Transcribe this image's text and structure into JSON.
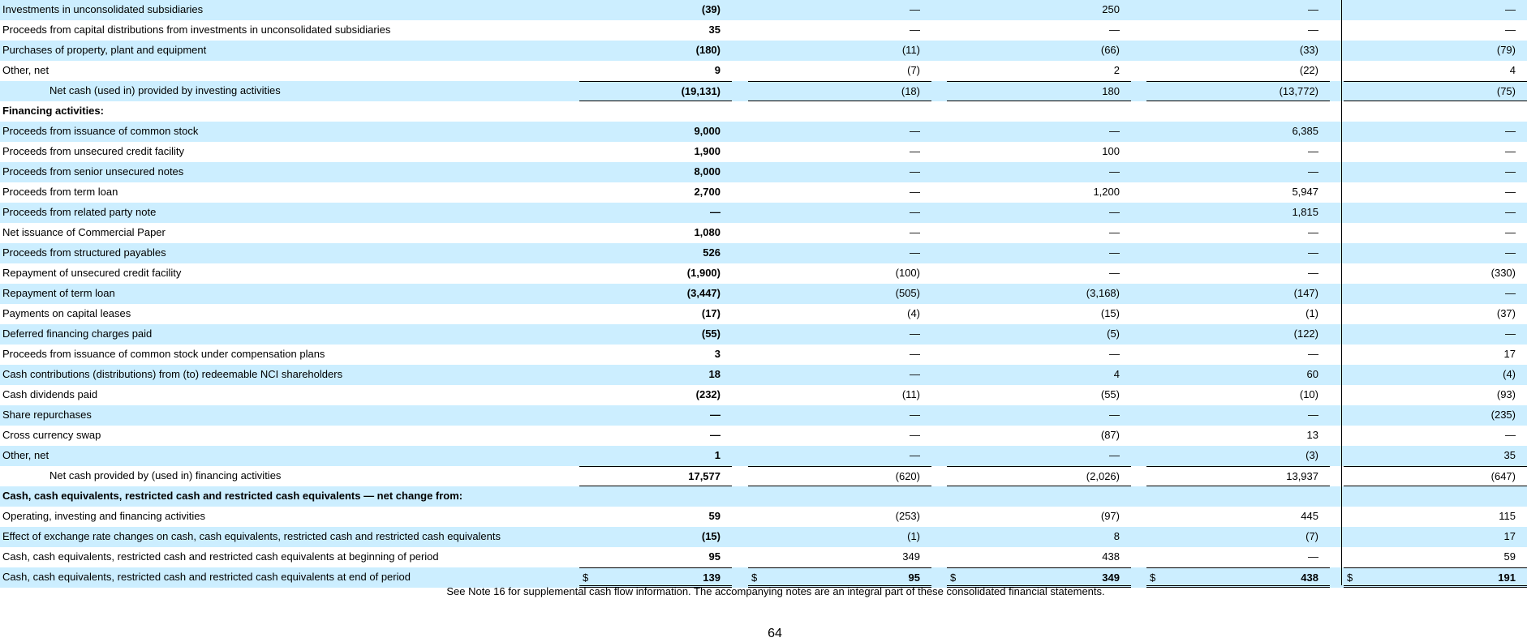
{
  "rows": [
    {
      "label": "Investments in unconsolidated subsidiaries",
      "style": "",
      "shaded": true,
      "values": [
        "(39)",
        "—",
        "250",
        "—",
        "—"
      ]
    },
    {
      "label": "Proceeds from capital distributions from investments in unconsolidated subsidiaries",
      "style": "",
      "shaded": false,
      "values": [
        "35",
        "—",
        "—",
        "—",
        "—"
      ]
    },
    {
      "label": "Purchases of property, plant and equipment",
      "style": "",
      "shaded": true,
      "values": [
        "(180)",
        "(11)",
        "(66)",
        "(33)",
        "(79)"
      ]
    },
    {
      "label": "Other, net",
      "style": "",
      "shaded": false,
      "values": [
        "9",
        "(7)",
        "2",
        "(22)",
        "4"
      ]
    },
    {
      "label": "Net cash (used in) provided by investing activities",
      "style": "total",
      "shaded": true,
      "values": [
        "(19,131)",
        "(18)",
        "180",
        "(13,772)",
        "(75)"
      ]
    },
    {
      "label": "Financing activities:",
      "style": "section",
      "shaded": false,
      "values": []
    },
    {
      "label": "Proceeds from issuance of common stock",
      "style": "",
      "shaded": true,
      "values": [
        "9,000",
        "—",
        "—",
        "6,385",
        "—"
      ]
    },
    {
      "label": "Proceeds from unsecured credit facility",
      "style": "",
      "shaded": false,
      "values": [
        "1,900",
        "—",
        "100",
        "—",
        "—"
      ]
    },
    {
      "label": "Proceeds from senior unsecured notes",
      "style": "",
      "shaded": true,
      "values": [
        "8,000",
        "—",
        "—",
        "—",
        "—"
      ]
    },
    {
      "label": "Proceeds from term loan",
      "style": "",
      "shaded": false,
      "values": [
        "2,700",
        "—",
        "1,200",
        "5,947",
        "—"
      ]
    },
    {
      "label": "Proceeds from related party note",
      "style": "",
      "shaded": true,
      "values": [
        "—",
        "—",
        "—",
        "1,815",
        "—"
      ]
    },
    {
      "label": "Net issuance of Commercial Paper",
      "style": "",
      "shaded": false,
      "values": [
        "1,080",
        "—",
        "—",
        "—",
        "—"
      ]
    },
    {
      "label": "Proceeds from structured payables",
      "style": "",
      "shaded": true,
      "values": [
        "526",
        "—",
        "—",
        "—",
        "—"
      ]
    },
    {
      "label": "Repayment of unsecured credit facility",
      "style": "",
      "shaded": false,
      "values": [
        "(1,900)",
        "(100)",
        "—",
        "—",
        "(330)"
      ]
    },
    {
      "label": "Repayment of term loan",
      "style": "",
      "shaded": true,
      "values": [
        "(3,447)",
        "(505)",
        "(3,168)",
        "(147)",
        "—"
      ]
    },
    {
      "label": "Payments on capital leases",
      "style": "",
      "shaded": false,
      "values": [
        "(17)",
        "(4)",
        "(15)",
        "(1)",
        "(37)"
      ]
    },
    {
      "label": "Deferred financing charges paid",
      "style": "",
      "shaded": true,
      "values": [
        "(55)",
        "—",
        "(5)",
        "(122)",
        "—"
      ]
    },
    {
      "label": "Proceeds from issuance of common stock under compensation plans",
      "style": "",
      "shaded": false,
      "values": [
        "3",
        "—",
        "—",
        "—",
        "17"
      ]
    },
    {
      "label": "Cash contributions (distributions) from (to) redeemable NCI shareholders",
      "style": "",
      "shaded": true,
      "values": [
        "18",
        "—",
        "4",
        "60",
        "(4)"
      ]
    },
    {
      "label": "Cash dividends paid",
      "style": "",
      "shaded": false,
      "values": [
        "(232)",
        "(11)",
        "(55)",
        "(10)",
        "(93)"
      ]
    },
    {
      "label": "Share repurchases",
      "style": "",
      "shaded": true,
      "values": [
        "—",
        "—",
        "—",
        "—",
        "(235)"
      ]
    },
    {
      "label": "Cross currency swap",
      "style": "",
      "shaded": false,
      "values": [
        "—",
        "—",
        "(87)",
        "13",
        "—"
      ]
    },
    {
      "label": "Other, net",
      "style": "",
      "shaded": true,
      "values": [
        "1",
        "—",
        "—",
        "(3)",
        "35"
      ]
    },
    {
      "label": "Net cash provided by (used in) financing activities",
      "style": "total",
      "shaded": false,
      "values": [
        "17,577",
        "(620)",
        "(2,026)",
        "13,937",
        "(647)"
      ]
    },
    {
      "label": "Cash, cash equivalents, restricted cash and restricted cash equivalents — net change from:",
      "style": "section",
      "shaded": true,
      "values": []
    },
    {
      "label": "Operating, investing and financing activities",
      "style": "",
      "shaded": false,
      "values": [
        "59",
        "(253)",
        "(97)",
        "445",
        "115"
      ]
    },
    {
      "label": "Effect of exchange rate changes on cash, cash equivalents, restricted cash and restricted cash equivalents",
      "style": "",
      "shaded": true,
      "values": [
        "(15)",
        "(1)",
        "8",
        "(7)",
        "17"
      ]
    },
    {
      "label": "Cash, cash equivalents, restricted cash and restricted cash equivalents at beginning of period",
      "style": "",
      "shaded": false,
      "values": [
        "95",
        "349",
        "438",
        "—",
        "59"
      ]
    },
    {
      "label": "Cash, cash equivalents, restricted cash and restricted cash equivalents at end of period",
      "style": "final",
      "shaded": true,
      "values": [
        "139",
        "95",
        "349",
        "438",
        "191"
      ],
      "currency": "$"
    }
  ],
  "footnote": "See Note 16 for supplemental cash flow information. The accompanying notes are an integral part of these consolidated financial statements.",
  "page_number": "64",
  "colors": {
    "row_shade": "#cceeff",
    "text": "#000000"
  }
}
